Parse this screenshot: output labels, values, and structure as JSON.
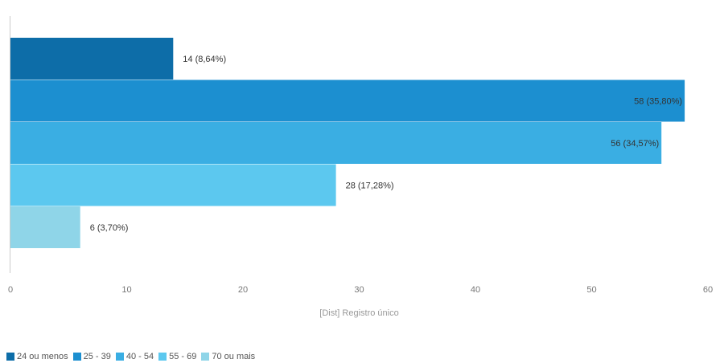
{
  "chart_data": {
    "type": "bar",
    "orientation": "horizontal",
    "xlabel": "[Dist] Registro único",
    "xlim": [
      0,
      60
    ],
    "xticks": [
      0,
      10,
      20,
      30,
      40,
      50,
      60
    ],
    "grid": false,
    "legend_position": "bottom-left",
    "series": [
      {
        "name": "24 ou menos",
        "value": 14,
        "label": "14 (8,64%)",
        "color": "#0d6da8"
      },
      {
        "name": "25 - 39",
        "value": 58,
        "label": "58 (35,80%)",
        "color": "#1c8fd0"
      },
      {
        "name": "40 - 54",
        "value": 56,
        "label": "56 (34,57%)",
        "color": "#3aaee3"
      },
      {
        "name": "55 - 69",
        "value": 28,
        "label": "28 (17,28%)",
        "color": "#5cc8ef"
      },
      {
        "name": "70 ou mais",
        "value": 6,
        "label": "6 (3,70%)",
        "color": "#8fd5e8"
      }
    ]
  }
}
